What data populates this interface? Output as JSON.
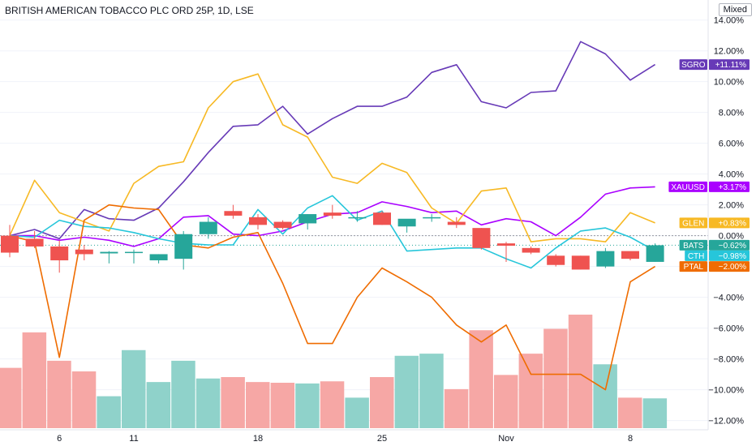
{
  "header": {
    "title": "BRITISH AMERICAN TOBACCO PLC ORD 25P, 1D, LSE",
    "scale_mode": "Mixed"
  },
  "chart_data": {
    "type": "line",
    "x_tick_labels": [
      "6",
      "11",
      "18",
      "25",
      "Nov",
      "8"
    ],
    "y_ticks": [
      "14.00%",
      "12.00%",
      "10.00%",
      "8.00%",
      "6.00%",
      "4.00%",
      "2.00%",
      "0.00%",
      "−2.00%",
      "−4.00%",
      "−6.00%",
      "−8.00%",
      "−10.00%",
      "−12.00%"
    ],
    "y_tick_values": [
      14,
      12,
      10,
      8,
      6,
      4,
      2,
      0,
      -2,
      -4,
      -6,
      -8,
      -10,
      -12
    ],
    "ylim": [
      -12.6,
      15.3
    ],
    "grid": "horizontal",
    "candles": {
      "name": "BATS",
      "up_color": "#26a69a",
      "down_color": "#ef5350",
      "bars": [
        {
          "o": 0.0,
          "h": 0.7,
          "l": -1.4,
          "c": -1.1
        },
        {
          "o": -0.2,
          "h": 0.3,
          "l": -0.8,
          "c": -0.7
        },
        {
          "o": -0.7,
          "h": -0.3,
          "l": -2.4,
          "c": -1.6
        },
        {
          "o": -0.9,
          "h": -0.6,
          "l": -1.6,
          "c": -1.2
        },
        {
          "o": -1.15,
          "h": -1.0,
          "l": -1.8,
          "c": -1.05
        },
        {
          "o": -1.1,
          "h": -0.9,
          "l": -1.8,
          "c": -1.05
        },
        {
          "o": -1.6,
          "h": -1.2,
          "l": -1.8,
          "c": -1.2
        },
        {
          "o": -1.5,
          "h": 0.3,
          "l": -2.2,
          "c": 0.1
        },
        {
          "o": 0.1,
          "h": 1.2,
          "l": -0.2,
          "c": 0.9
        },
        {
          "o": 1.6,
          "h": 2.0,
          "l": 1.1,
          "c": 1.3
        },
        {
          "o": 1.2,
          "h": 1.4,
          "l": 0.4,
          "c": 0.7
        },
        {
          "o": 0.9,
          "h": 1.0,
          "l": 0.4,
          "c": 0.5
        },
        {
          "o": 0.8,
          "h": 1.4,
          "l": 0.4,
          "c": 1.4
        },
        {
          "o": 1.5,
          "h": 2.0,
          "l": 1.1,
          "c": 1.3
        },
        {
          "o": 1.2,
          "h": 1.6,
          "l": 0.9,
          "c": 1.2
        },
        {
          "o": 1.5,
          "h": 1.6,
          "l": 0.7,
          "c": 0.7
        },
        {
          "o": 0.6,
          "h": 1.0,
          "l": 0.2,
          "c": 1.1
        },
        {
          "o": 1.15,
          "h": 1.4,
          "l": 0.9,
          "c": 1.2
        },
        {
          "o": 0.9,
          "h": 1.2,
          "l": 0.5,
          "c": 0.7
        },
        {
          "o": 0.5,
          "h": 0.5,
          "l": -0.9,
          "c": -0.8
        },
        {
          "o": -0.5,
          "h": -0.4,
          "l": -1.7,
          "c": -0.65
        },
        {
          "o": -0.8,
          "h": -0.7,
          "l": -1.2,
          "c": -1.1
        },
        {
          "o": -1.3,
          "h": -1.2,
          "l": -2.0,
          "c": -1.9
        },
        {
          "o": -1.3,
          "h": -1.3,
          "l": -2.2,
          "c": -2.2
        },
        {
          "o": -2.0,
          "h": -0.8,
          "l": -2.1,
          "c": -1.0
        },
        {
          "o": -1.0,
          "h": -1.1,
          "l": -1.6,
          "c": -1.5
        },
        {
          "o": -1.7,
          "h": -0.5,
          "l": -1.7,
          "c": -0.62
        }
      ]
    },
    "volume": {
      "values": [
        8.5,
        13.5,
        9.5,
        8,
        4.5,
        11,
        6.5,
        9.5,
        7,
        7.2,
        6.5,
        6.4,
        6.3,
        6.6,
        4.3,
        7.2,
        10.2,
        10.5,
        5.5,
        13.8,
        7.5,
        10.5,
        14,
        16,
        9,
        4.3,
        4.2
      ],
      "up_color": "#8fd2ca",
      "down_color": "#f6a7a5"
    },
    "series": [
      {
        "name": "SGRO",
        "color": "#673ab7",
        "tag": "+11.11%",
        "values": [
          0.0,
          0.4,
          -0.2,
          1.7,
          1.1,
          1.0,
          1.8,
          3.5,
          5.4,
          7.1,
          7.2,
          8.4,
          6.6,
          7.6,
          8.4,
          8.4,
          9.0,
          10.6,
          11.1,
          8.7,
          8.3,
          9.3,
          9.4,
          12.6,
          11.8,
          10.1,
          11.11
        ]
      },
      {
        "name": "XAUUSD",
        "color": "#aa00ff",
        "tag": "+3.17%",
        "values": [
          0.0,
          0.0,
          -0.3,
          -0.1,
          -0.3,
          -0.7,
          -0.2,
          1.2,
          1.3,
          0.1,
          0.0,
          0.3,
          0.9,
          1.4,
          1.5,
          2.2,
          1.9,
          1.5,
          1.6,
          0.7,
          1.1,
          0.9,
          0.0,
          1.2,
          2.7,
          3.1,
          3.17
        ]
      },
      {
        "name": "GLEN",
        "color": "#f7b924",
        "tag": "+0.83%",
        "values": [
          0.0,
          3.6,
          1.5,
          0.9,
          0.3,
          3.4,
          4.5,
          4.8,
          8.3,
          10.0,
          10.5,
          7.2,
          6.4,
          3.8,
          3.4,
          4.7,
          4.1,
          1.8,
          0.8,
          2.9,
          3.1,
          -0.4,
          -0.2,
          -0.2,
          -0.4,
          1.5,
          0.83
        ]
      },
      {
        "name": "CTH",
        "color": "#26c6da",
        "tag": "−0.98%",
        "values": [
          0.0,
          -0.1,
          1.0,
          0.6,
          0.5,
          0.2,
          -0.2,
          -0.5,
          -0.6,
          -0.6,
          1.7,
          0.1,
          1.8,
          2.6,
          1.0,
          1.6,
          -1.0,
          -0.9,
          -0.8,
          -0.8,
          -1.5,
          -2.1,
          -0.8,
          0.3,
          0.5,
          -0.1,
          -0.98
        ]
      },
      {
        "name": "PTAL",
        "color": "#ef6c00",
        "tag": "−2.00%",
        "values": [
          0.0,
          -0.4,
          -7.9,
          1.0,
          2.0,
          1.8,
          1.7,
          -0.6,
          -0.8,
          -0.1,
          0.2,
          -3.1,
          -7.0,
          -7.0,
          -4.0,
          -2.1,
          -3.0,
          -4.0,
          -5.8,
          -6.9,
          -5.8,
          -9.0,
          -9.0,
          -9.0,
          -10.0,
          -3.0,
          -2.0
        ]
      }
    ],
    "main_tag": {
      "name": "BATS",
      "tag": "−0.62%",
      "color": "#26a69a"
    },
    "tags_order": [
      "SGRO",
      "XAUUSD",
      "GLEN",
      "BATS",
      "CTH",
      "PTAL"
    ]
  }
}
